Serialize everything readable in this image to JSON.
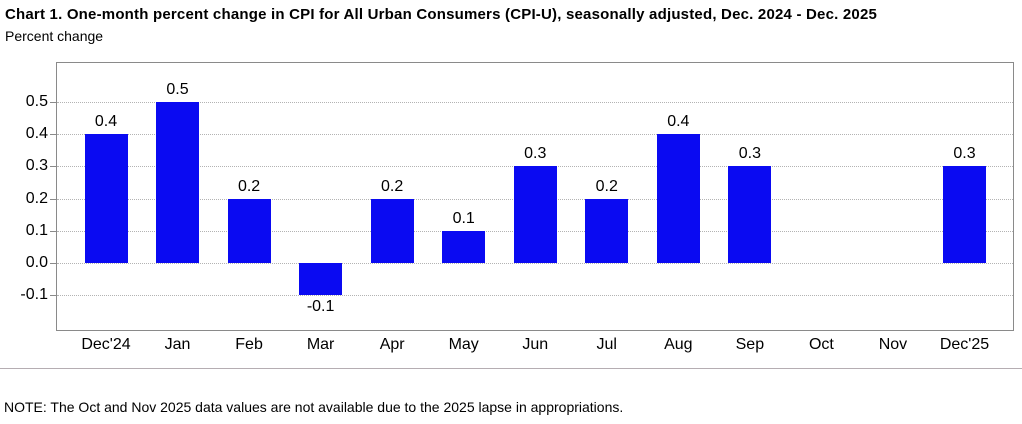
{
  "header": {
    "title": "Chart 1. One-month percent change in CPI for All Urban Consumers (CPI-U), seasonally adjusted, Dec. 2024 - Dec. 2025",
    "subtitle": "Percent change"
  },
  "chart_data": {
    "type": "bar",
    "title": "Chart 1. One-month percent change in CPI for All Urban Consumers (CPI-U), seasonally adjusted, Dec. 2024 - Dec. 2025",
    "ylabel": "Percent change",
    "xlabel": "",
    "categories": [
      "Dec'24",
      "Jan",
      "Feb",
      "Mar",
      "Apr",
      "May",
      "Jun",
      "Jul",
      "Aug",
      "Sep",
      "Oct",
      "Nov",
      "Dec'25"
    ],
    "values": [
      0.4,
      0.5,
      0.2,
      -0.1,
      0.2,
      0.1,
      0.3,
      0.2,
      0.4,
      0.3,
      null,
      null,
      0.3
    ],
    "bar_labels": [
      "0.4",
      "0.5",
      "0.2",
      "-0.1",
      "0.2",
      "0.1",
      "0.3",
      "0.2",
      "0.4",
      "0.3",
      null,
      null,
      "0.3"
    ],
    "missing_categories": [
      "Oct",
      "Nov"
    ],
    "ytick_labels": [
      "0.5",
      "0.4",
      "0.3",
      "0.2",
      "0.1",
      "0.0",
      "-0.1"
    ],
    "yticks": [
      0.5,
      0.4,
      0.3,
      0.2,
      0.1,
      0.0,
      -0.1
    ],
    "ylim": [
      -0.208,
      0.621
    ],
    "grid": true,
    "legend_position": "none",
    "bar_color": "#0a0af2",
    "gridline_color": "#b3b3b3",
    "axis_color": "#8a8a8a"
  },
  "note": {
    "text": "NOTE: The Oct and Nov 2025 data values are not available due to the 2025 lapse in appropriations."
  }
}
